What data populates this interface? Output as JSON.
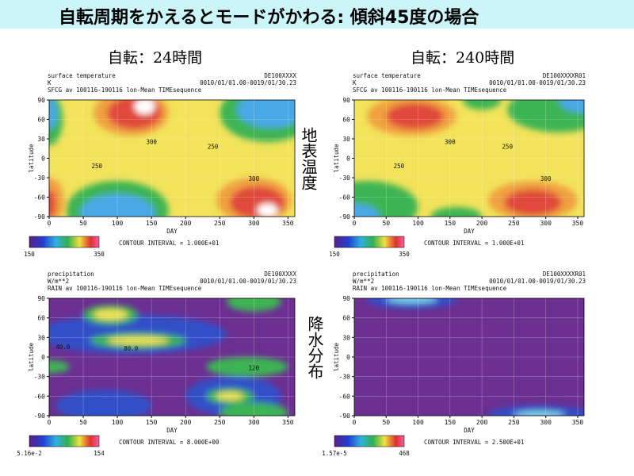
{
  "title": "自転周期をかえるとモードがかわる: 傾斜45度の場合",
  "columns": [
    "自転：24時間",
    "自転：240時間"
  ],
  "rows": [
    "地表温度",
    "降水分布"
  ],
  "panels": [
    {
      "variable": "surface temperature",
      "units": "K",
      "description": "SFCG av 100116-190116 lon-Mean TIMEsequence",
      "run_id": "DE100XXXX",
      "period": "0010/01/01.00-0019/01/30.23",
      "x_label": "DAY",
      "y_label": "latitude",
      "xlim": [
        0,
        360
      ],
      "ylim": [
        -90,
        90
      ],
      "xticks": [
        0,
        50,
        100,
        150,
        200,
        250,
        300,
        350
      ],
      "yticks": [
        -90,
        -60,
        -30,
        0,
        30,
        60,
        90
      ],
      "colorbar_min": "150",
      "colorbar_max": "350",
      "contour_interval": "CONTOUR INTERVAL = 1.000E+01",
      "contour_labels": [
        "300",
        "250",
        "250",
        "300"
      ]
    },
    {
      "variable": "surface temperature",
      "units": "K",
      "description": "SFCG av 100116-190116 lon-Mean TIMEsequence",
      "run_id": "DE100XXXXR01",
      "period": "0010/01/01.00-0019/01/30.23",
      "x_label": "DAY",
      "y_label": "latitude",
      "xlim": [
        0,
        360
      ],
      "ylim": [
        -90,
        90
      ],
      "xticks": [
        0,
        50,
        100,
        150,
        200,
        250,
        300,
        350
      ],
      "yticks": [
        -90,
        -60,
        -30,
        0,
        30,
        60,
        90
      ],
      "colorbar_min": "150",
      "colorbar_max": "350",
      "contour_interval": "CONTOUR INTERVAL = 1.000E+01",
      "contour_labels": [
        "300",
        "250",
        "250",
        "300"
      ]
    },
    {
      "variable": "precipitation",
      "units": "W/m**2",
      "description": "RAIN av 100116-190116 lon-Mean TIMEsequence",
      "run_id": "DE100XXXX",
      "period": "0010/01/01.00-0019/01/30.23",
      "x_label": "DAY",
      "y_label": "latitude",
      "xlim": [
        0,
        360
      ],
      "ylim": [
        -90,
        90
      ],
      "xticks": [
        0,
        50,
        100,
        150,
        200,
        250,
        300,
        350
      ],
      "yticks": [
        -90,
        -60,
        -30,
        0,
        30,
        60,
        90
      ],
      "colorbar_min": "5.16e-2",
      "colorbar_max": "154",
      "contour_interval": "CONTOUR INTERVAL = 8.000E+00",
      "contour_labels": [
        "40.0",
        "80.0",
        "120"
      ]
    },
    {
      "variable": "precipitation",
      "units": "W/m**2",
      "description": "RAIN av 100116-190116 lon-Mean TIMEsequence",
      "run_id": "DE100XXXXR01",
      "period": "0010/01/01.00-0019/01/30.23",
      "x_label": "DAY",
      "y_label": "latitude",
      "xlim": [
        0,
        360
      ],
      "ylim": [
        -90,
        90
      ],
      "xticks": [
        0,
        50,
        100,
        150,
        200,
        250,
        300,
        350
      ],
      "yticks": [
        -90,
        -60,
        -30,
        0,
        30,
        60,
        90
      ],
      "colorbar_min": "1.57e-5",
      "colorbar_max": "468",
      "contour_interval": "CONTOUR INTERVAL = 2.500E+01",
      "contour_labels": []
    }
  ]
}
